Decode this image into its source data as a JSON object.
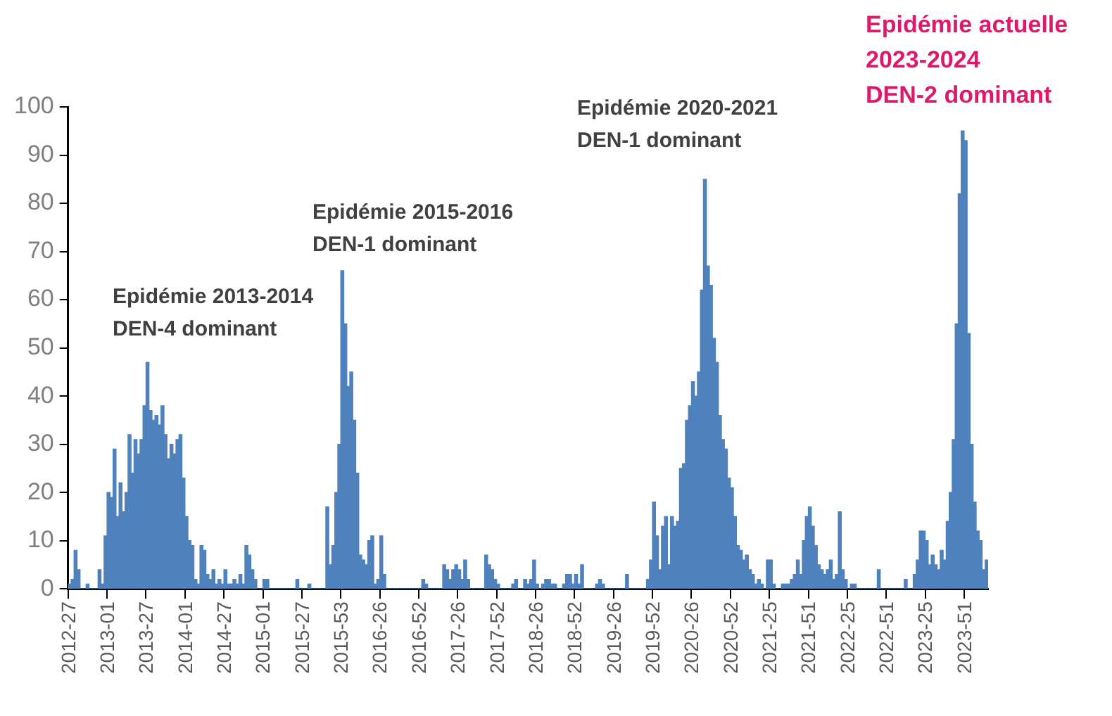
{
  "chart_data": {
    "type": "bar",
    "color": "#4f81bd",
    "categories": [
      "2012-27",
      null,
      null,
      null,
      null,
      null,
      null,
      null,
      null,
      null,
      null,
      null,
      null,
      "2013-01",
      null,
      null,
      null,
      null,
      null,
      null,
      null,
      null,
      null,
      null,
      null,
      null,
      "2013-27",
      null,
      null,
      null,
      null,
      null,
      null,
      null,
      null,
      null,
      null,
      null,
      null,
      "2014-01",
      null,
      null,
      null,
      null,
      null,
      null,
      null,
      null,
      null,
      null,
      null,
      null,
      "2014-27",
      null,
      null,
      null,
      null,
      null,
      null,
      null,
      null,
      null,
      null,
      null,
      null,
      "2015-01",
      null,
      null,
      null,
      null,
      null,
      null,
      null,
      null,
      null,
      null,
      null,
      null,
      "2015-27",
      null,
      null,
      null,
      null,
      null,
      null,
      null,
      null,
      null,
      null,
      null,
      null,
      "2015-53",
      null,
      null,
      null,
      null,
      null,
      null,
      null,
      null,
      null,
      null,
      null,
      null,
      "2016-26",
      null,
      null,
      null,
      null,
      null,
      null,
      null,
      null,
      null,
      null,
      null,
      null,
      "2016-52",
      null,
      null,
      null,
      null,
      null,
      null,
      null,
      null,
      null,
      null,
      null,
      null,
      "2017-26",
      null,
      null,
      null,
      null,
      null,
      null,
      null,
      null,
      null,
      null,
      null,
      null,
      "2017-52",
      null,
      null,
      null,
      null,
      null,
      null,
      null,
      null,
      null,
      null,
      null,
      null,
      "2018-26",
      null,
      null,
      null,
      null,
      null,
      null,
      null,
      null,
      null,
      null,
      null,
      null,
      "2018-52",
      null,
      null,
      null,
      null,
      null,
      null,
      null,
      null,
      null,
      null,
      null,
      null,
      "2019-26",
      null,
      null,
      null,
      null,
      null,
      null,
      null,
      null,
      null,
      null,
      null,
      null,
      "2019-52",
      null,
      null,
      null,
      null,
      null,
      null,
      null,
      null,
      null,
      null,
      null,
      null,
      "2020-26",
      null,
      null,
      null,
      null,
      null,
      null,
      null,
      null,
      null,
      null,
      null,
      null,
      "2020-52",
      null,
      null,
      null,
      null,
      null,
      null,
      null,
      null,
      null,
      null,
      null,
      null,
      "2021-25",
      null,
      null,
      null,
      null,
      null,
      null,
      null,
      null,
      null,
      null,
      null,
      null,
      "2021-51",
      null,
      null,
      null,
      null,
      null,
      null,
      null,
      null,
      null,
      null,
      null,
      null,
      "2022-25",
      null,
      null,
      null,
      null,
      null,
      null,
      null,
      null,
      null,
      null,
      null,
      null,
      "2022-51",
      null,
      null,
      null,
      null,
      null,
      null,
      null,
      null,
      null,
      null,
      null,
      null,
      "2023-25",
      null,
      null,
      null,
      null,
      null,
      null,
      null,
      null,
      null,
      null,
      null,
      null,
      "2023-51",
      null,
      null,
      null,
      null,
      null,
      null,
      null
    ],
    "values": [
      1,
      2,
      8,
      4,
      0,
      0,
      1,
      0,
      0,
      0,
      4,
      1,
      11,
      20,
      19,
      29,
      15,
      22,
      16,
      20,
      32,
      24,
      31,
      28,
      31,
      38,
      47,
      37,
      35,
      36,
      34,
      38,
      32,
      27,
      30,
      28,
      31,
      32,
      23,
      15,
      10,
      9,
      2,
      1,
      9,
      8,
      3,
      2,
      4,
      1,
      2,
      1,
      4,
      1,
      1,
      2,
      1,
      3,
      1,
      9,
      7,
      4,
      2,
      0,
      0,
      2,
      2,
      0,
      0,
      0,
      0,
      0,
      0,
      0,
      0,
      0,
      2,
      0,
      0,
      0,
      1,
      0,
      0,
      0,
      0,
      0,
      17,
      5,
      9,
      20,
      30,
      66,
      55,
      42,
      45,
      35,
      24,
      7,
      6,
      5,
      10,
      11,
      1,
      2,
      11,
      3,
      0,
      0,
      0,
      0,
      0,
      0,
      0,
      0,
      0,
      0,
      0,
      0,
      2,
      1,
      0,
      0,
      0,
      0,
      0,
      5,
      4,
      2,
      4,
      5,
      4,
      2,
      6,
      2,
      0,
      0,
      0,
      0,
      0,
      7,
      5,
      4,
      2,
      1,
      0,
      0,
      0,
      0,
      1,
      2,
      0,
      0,
      2,
      1,
      2,
      6,
      1,
      0,
      1,
      2,
      2,
      1,
      1,
      0,
      0,
      1,
      3,
      3,
      1,
      3,
      1,
      5,
      0,
      0,
      0,
      0,
      1,
      2,
      1,
      0,
      0,
      0,
      0,
      0,
      0,
      0,
      3,
      0,
      0,
      0,
      0,
      0,
      0,
      2,
      6,
      18,
      11,
      4,
      13,
      15,
      5,
      15,
      13,
      14,
      25,
      26,
      35,
      38,
      43,
      40,
      45,
      62,
      85,
      67,
      63,
      52,
      47,
      36,
      31,
      29,
      23,
      21,
      15,
      9,
      8,
      6,
      7,
      4,
      3,
      1,
      2,
      1,
      0,
      6,
      6,
      1,
      0,
      0,
      1,
      1,
      1,
      2,
      3,
      6,
      3,
      10,
      15,
      17,
      13,
      9,
      5,
      4,
      3,
      4,
      6,
      2,
      3,
      16,
      4,
      2,
      0,
      1,
      1,
      0,
      0,
      0,
      0,
      0,
      0,
      0,
      4,
      0,
      0,
      0,
      0,
      0,
      0,
      0,
      0,
      2,
      0,
      0,
      3,
      6,
      12,
      12,
      10,
      5,
      7,
      5,
      4,
      8,
      6,
      14,
      20,
      31,
      55,
      82,
      95,
      93,
      53,
      30,
      18,
      12,
      10,
      4,
      6
    ],
    "ylim": [
      0,
      100
    ],
    "yticks": [
      0,
      10,
      20,
      30,
      40,
      50,
      60,
      70,
      80,
      90,
      100
    ],
    "annotations": [
      "Epidémie 2013-2014\nDEN-4 dominant",
      "Epidémie 2015-2016\nDEN-1 dominant",
      "Epidémie 2020-2021\nDEN-1 dominant",
      "Epidémie actuelle\n2023-2024\nDEN-2 dominant"
    ]
  }
}
